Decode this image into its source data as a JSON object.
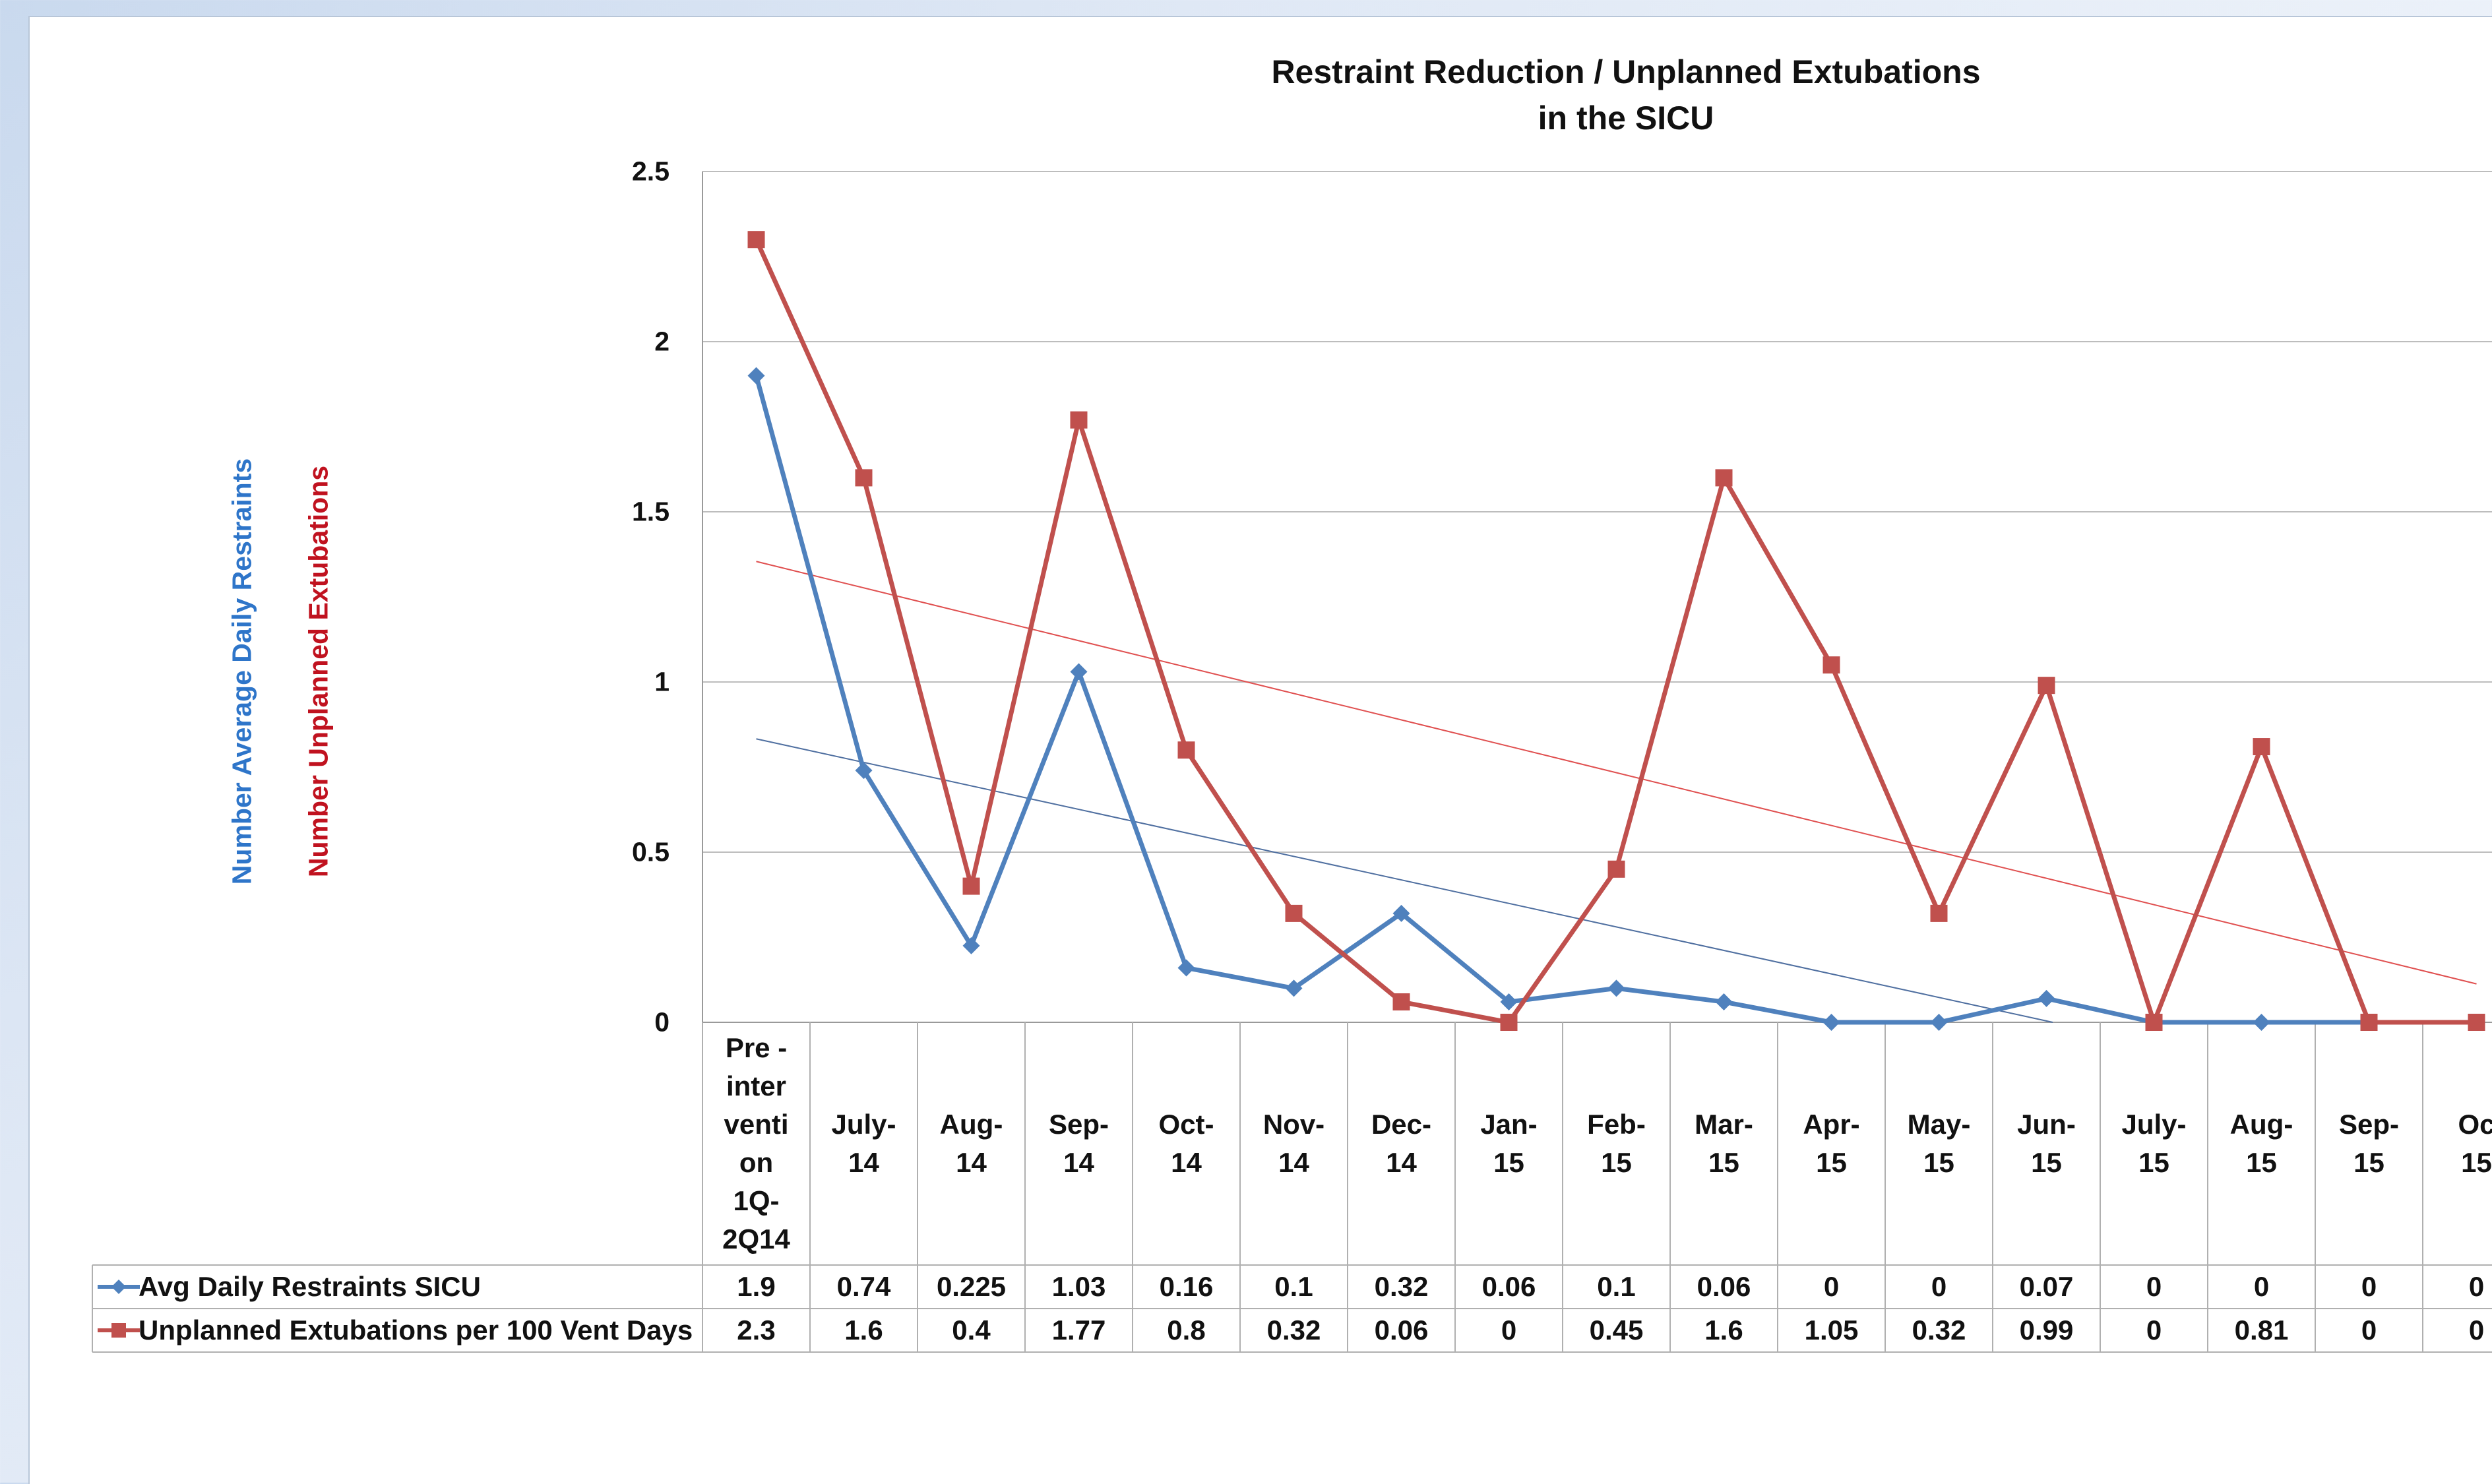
{
  "chart_data": {
    "type": "line",
    "title_lines": [
      "Restraint Reduction / Unplanned Extubations",
      "in the SICU"
    ],
    "ylabel_parts": [
      {
        "text": "Number  Average Daily Restraints",
        "color": "#2e75c9"
      },
      {
        "text": "Number Unplanned Extubations",
        "color": "#c0121f"
      }
    ],
    "yticks": [
      "2.5",
      "2",
      "1.5",
      "1",
      "0.5",
      "0"
    ],
    "ylim": [
      0,
      2.5
    ],
    "grid": true,
    "legend": "data-table rows below the plot",
    "categories": [
      [
        "Pre -",
        "inter",
        "venti",
        "on",
        "1Q-",
        "2Q14"
      ],
      [
        "July-",
        "14"
      ],
      [
        "Aug-",
        "14"
      ],
      [
        "Sep-",
        "14"
      ],
      [
        "Oct-",
        "14"
      ],
      [
        "Nov-",
        "14"
      ],
      [
        "Dec-",
        "14"
      ],
      [
        "Jan-",
        "15"
      ],
      [
        "Feb-",
        "15"
      ],
      [
        "Mar-",
        "15"
      ],
      [
        "Apr-",
        "15"
      ],
      [
        "May-",
        "15"
      ],
      [
        "Jun-",
        "15"
      ],
      [
        "July-",
        "15"
      ],
      [
        "Aug-",
        "15"
      ],
      [
        "Sep-",
        "15"
      ],
      [
        "Oc",
        "15"
      ]
    ],
    "series": [
      {
        "name": "Avg Daily Restraints SICU",
        "color": "#4f81bd",
        "marker": "diamond",
        "values": [
          1.9,
          0.74,
          0.225,
          1.03,
          0.16,
          0.1,
          0.32,
          0.06,
          0.1,
          0.06,
          0,
          0,
          0.07,
          0,
          0,
          0,
          0
        ],
        "labels": [
          "1.9",
          "0.74",
          "0.225",
          "1.03",
          "0.16",
          "0.1",
          "0.32",
          "0.06",
          "0.1",
          "0.06",
          "0",
          "0",
          "0.07",
          "0",
          "0",
          "0",
          "0"
        ],
        "trendline": true,
        "trend_color": "#4f6fa0"
      },
      {
        "name": "Unplanned Extubations per 100 Vent Days",
        "color": "#c0504d",
        "marker": "square",
        "values": [
          2.3,
          1.6,
          0.4,
          1.77,
          0.8,
          0.32,
          0.06,
          0,
          0.45,
          1.6,
          1.05,
          0.32,
          0.99,
          0,
          0.81,
          0,
          0
        ],
        "labels": [
          "2.3",
          "1.6",
          "0.4",
          "1.77",
          "0.8",
          "0.32",
          "0.06",
          "0",
          "0.45",
          "1.6",
          "1.05",
          "0.32",
          "0.99",
          "0",
          "0.81",
          "0",
          "0"
        ],
        "trendline": true,
        "trend_color": "#e05050"
      }
    ]
  }
}
